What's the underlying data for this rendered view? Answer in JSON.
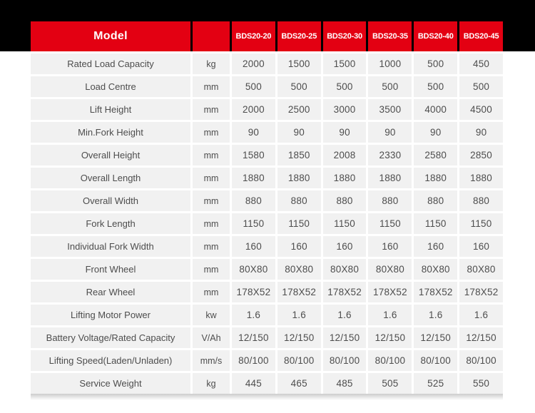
{
  "table": {
    "header": {
      "model_label": "Model",
      "unit_label": "",
      "columns": [
        "BDS20-20",
        "BDS20-25",
        "BDS20-30",
        "BDS20-35",
        "BDS20-40",
        "BDS20-45"
      ]
    },
    "rows": [
      {
        "label": "Rated Load Capacity",
        "unit": "kg",
        "values": [
          "2000",
          "1500",
          "1500",
          "1000",
          "500",
          "450"
        ]
      },
      {
        "label": "Load Centre",
        "unit": "mm",
        "values": [
          "500",
          "500",
          "500",
          "500",
          "500",
          "500"
        ]
      },
      {
        "label": "Lift Height",
        "unit": "mm",
        "values": [
          "2000",
          "2500",
          "3000",
          "3500",
          "4000",
          "4500"
        ]
      },
      {
        "label": "Min.Fork Height",
        "unit": "mm",
        "values": [
          "90",
          "90",
          "90",
          "90",
          "90",
          "90"
        ]
      },
      {
        "label": "Overall Height",
        "unit": "mm",
        "values": [
          "1580",
          "1850",
          "2008",
          "2330",
          "2580",
          "2850"
        ]
      },
      {
        "label": "Overall Length",
        "unit": "mm",
        "values": [
          "1880",
          "1880",
          "1880",
          "1880",
          "1880",
          "1880"
        ]
      },
      {
        "label": "Overall Width",
        "unit": "mm",
        "values": [
          "880",
          "880",
          "880",
          "880",
          "880",
          "880"
        ]
      },
      {
        "label": "Fork Length",
        "unit": "mm",
        "values": [
          "1150",
          "1150",
          "1150",
          "1150",
          "1150",
          "1150"
        ]
      },
      {
        "label": "Individual Fork Width",
        "unit": "mm",
        "values": [
          "160",
          "160",
          "160",
          "160",
          "160",
          "160"
        ]
      },
      {
        "label": "Front Wheel",
        "unit": "mm",
        "values": [
          "80X80",
          "80X80",
          "80X80",
          "80X80",
          "80X80",
          "80X80"
        ]
      },
      {
        "label": "Rear Wheel",
        "unit": "mm",
        "values": [
          "178X52",
          "178X52",
          "178X52",
          "178X52",
          "178X52",
          "178X52"
        ]
      },
      {
        "label": "Lifting Motor Power",
        "unit": "kw",
        "values": [
          "1.6",
          "1.6",
          "1.6",
          "1.6",
          "1.6",
          "1.6"
        ]
      },
      {
        "label": "Battery Voltage/Rated Capacity",
        "unit": "V/Ah",
        "values": [
          "12/150",
          "12/150",
          "12/150",
          "12/150",
          "12/150",
          "12/150"
        ]
      },
      {
        "label": "Lifting Speed(Laden/Unladen)",
        "unit": "mm/s",
        "values": [
          "80/100",
          "80/100",
          "80/100",
          "80/100",
          "80/100",
          "80/100"
        ]
      },
      {
        "label": "Service Weight",
        "unit": "kg",
        "values": [
          "445",
          "465",
          "485",
          "505",
          "525",
          "550"
        ]
      }
    ],
    "colors": {
      "top_band": "#000000",
      "header_bg": "#e30012",
      "header_text": "#ffffff",
      "cell_bg": "#f1f1f1",
      "cell_text": "#4d4d4d",
      "gutter": "#ffffff"
    }
  }
}
